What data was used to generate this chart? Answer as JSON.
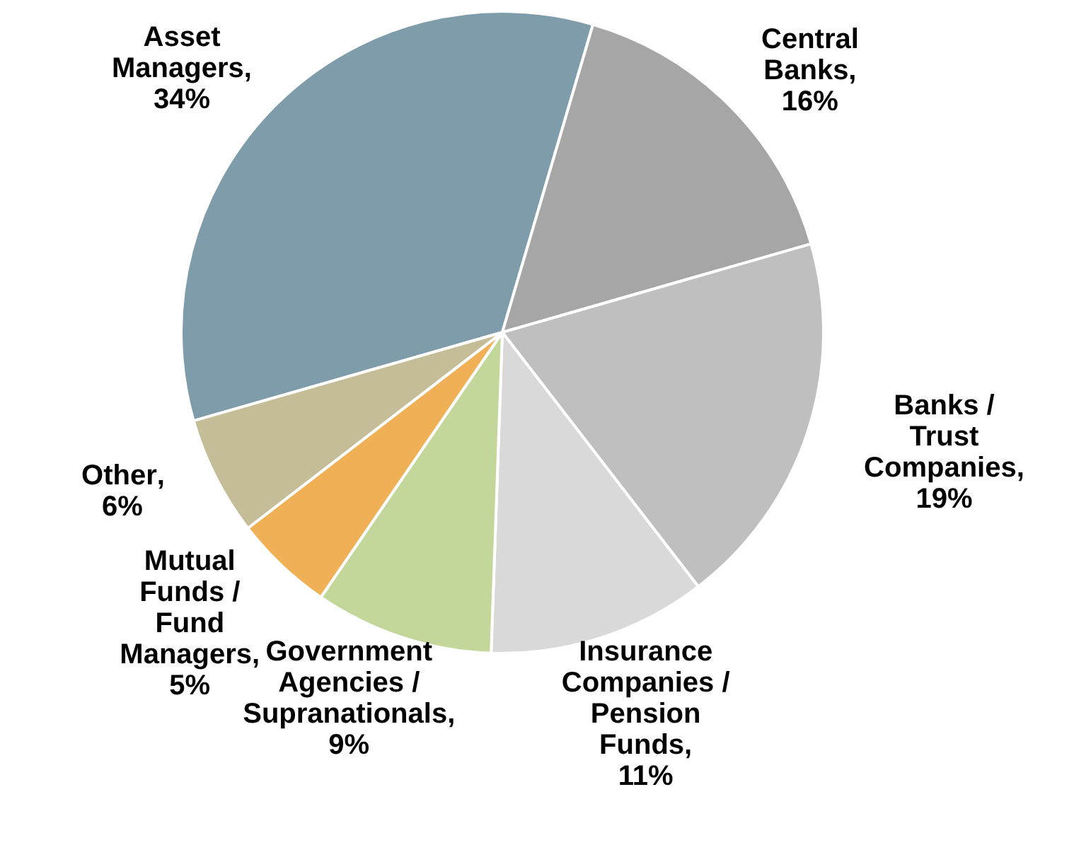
{
  "chart_data": {
    "type": "pie",
    "categories": [
      "Asset Managers",
      "Central Banks",
      "Banks / Trust Companies",
      "Insurance Companies / Pension Funds",
      "Government Agencies / Supranationals",
      "Mutual Funds / Fund Managers",
      "Other"
    ],
    "values": [
      34,
      16,
      19,
      11,
      9,
      5,
      6
    ],
    "value_labels": [
      ", 34%",
      ", 16%",
      ", 19%",
      ", 11%",
      ", 9%",
      ", 5%",
      ", 6%"
    ],
    "colors": [
      "#7f9cab",
      "#a6a6a6",
      "#bfbfbf",
      "#d9d9d9",
      "#c4d79b",
      "#f0b055",
      "#c4bd97"
    ],
    "legend": false
  }
}
